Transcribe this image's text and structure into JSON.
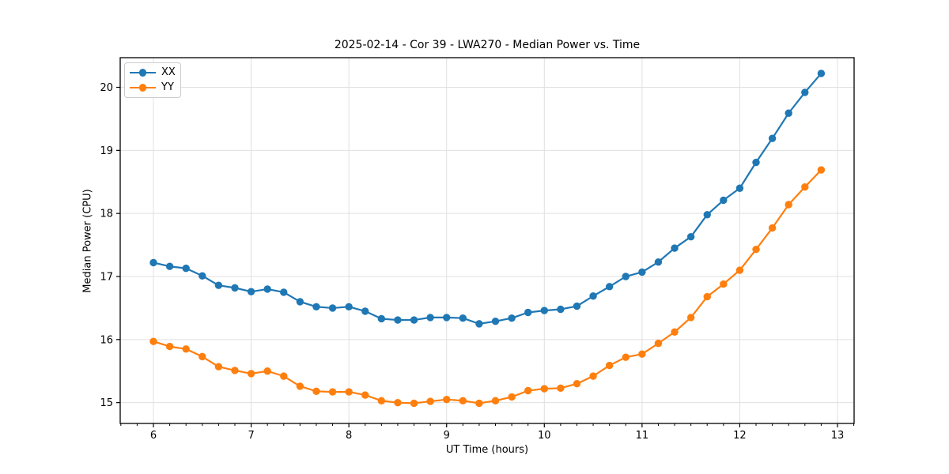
{
  "figure": {
    "title": "2025-02-14 - Cor 39 - LWA270 - Median Power vs. Time"
  },
  "chart_data": {
    "type": "line",
    "title": "2025-02-14 - Cor 39 - LWA270 - Median Power vs. Time",
    "xlabel": "UT Time (hours)",
    "ylabel": "Median Power (CPU)",
    "x": [
      6.0,
      6.1667,
      6.3333,
      6.5,
      6.6667,
      6.8333,
      7.0,
      7.1667,
      7.3333,
      7.5,
      7.6667,
      7.8333,
      8.0,
      8.1667,
      8.3333,
      8.5,
      8.6667,
      8.8333,
      9.0,
      9.1667,
      9.3333,
      9.5,
      9.6667,
      9.8333,
      10.0,
      10.1667,
      10.3333,
      10.5,
      10.6667,
      10.8333,
      11.0,
      11.1667,
      11.3333,
      11.5,
      11.6667,
      11.8333,
      12.0,
      12.1667,
      12.3333,
      12.5,
      12.6667,
      12.8333
    ],
    "series": [
      {
        "name": "XX",
        "color": "#1f77b4",
        "values": [
          17.22,
          17.16,
          17.13,
          17.01,
          16.86,
          16.82,
          16.76,
          16.8,
          16.75,
          16.6,
          16.52,
          16.5,
          16.52,
          16.45,
          16.33,
          16.31,
          16.31,
          16.35,
          16.35,
          16.34,
          16.25,
          16.29,
          16.34,
          16.43,
          16.46,
          16.48,
          16.53,
          16.69,
          16.84,
          17.0,
          17.07,
          17.23,
          17.45,
          17.63,
          17.98,
          18.21,
          18.4,
          18.81,
          19.19,
          19.59,
          19.92,
          20.22
        ]
      },
      {
        "name": "YY",
        "color": "#ff7f0e",
        "values": [
          15.97,
          15.89,
          15.85,
          15.73,
          15.57,
          15.51,
          15.46,
          15.5,
          15.42,
          15.26,
          15.18,
          15.17,
          15.17,
          15.12,
          15.03,
          15.0,
          14.99,
          15.02,
          15.05,
          15.03,
          14.99,
          15.03,
          15.09,
          15.19,
          15.22,
          15.23,
          15.3,
          15.42,
          15.59,
          15.72,
          15.77,
          15.94,
          16.12,
          16.35,
          16.68,
          16.88,
          17.1,
          17.43,
          17.77,
          18.14,
          18.42,
          18.69
        ]
      }
    ],
    "xlim": [
      5.66,
      13.17
    ],
    "ylim": [
      14.67,
      20.47
    ],
    "xticks": [
      6,
      7,
      8,
      9,
      10,
      11,
      12,
      13
    ],
    "yticks": [
      15,
      16,
      17,
      18,
      19,
      20
    ],
    "x_minor_tick_step": 0.166667,
    "grid": true,
    "grid_color": "#e0e0e0",
    "spine_color": "#000000",
    "legend_position": "upper-left",
    "marker": "circle"
  }
}
